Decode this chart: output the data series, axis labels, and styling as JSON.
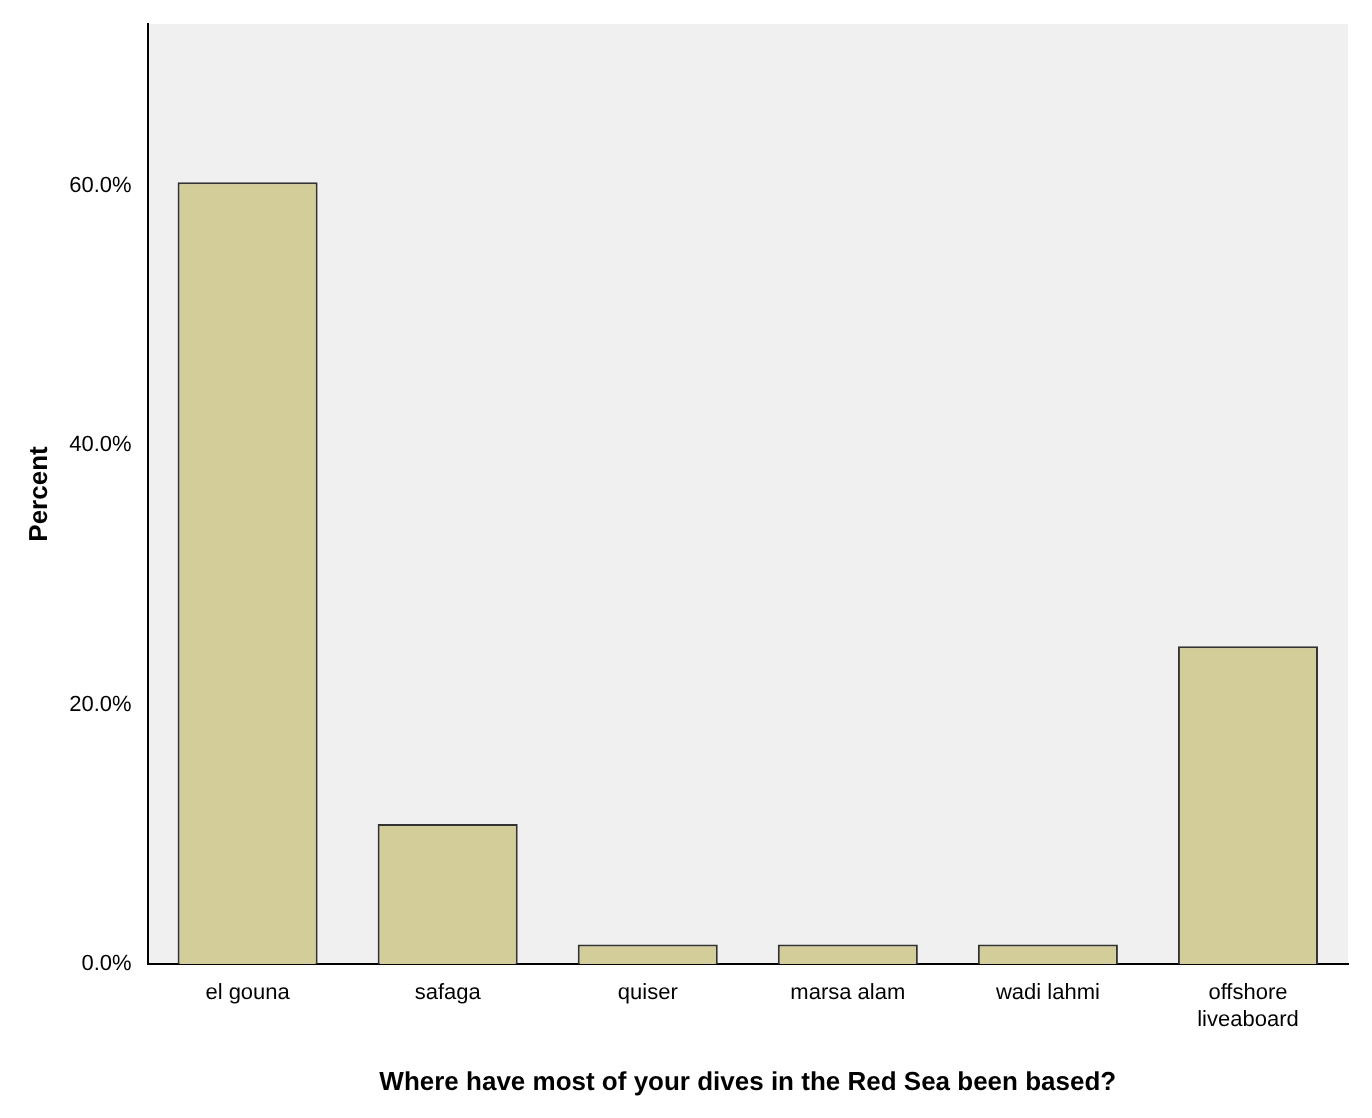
{
  "chart_data": {
    "type": "bar",
    "xlabel": "Where have most of your dives in the Red Sea been based?",
    "ylabel": "Percent",
    "categories": [
      "el gouna",
      "safaga",
      "quiser",
      "marsa alam",
      "wadi lahmi",
      "offshore liveaboard"
    ],
    "values": [
      60.3,
      10.8,
      1.5,
      1.5,
      1.5,
      24.5
    ],
    "color": "#d3ce99",
    "ylim": [
      0,
      72.5
    ],
    "yticks": [
      {
        "value": 0,
        "label": "0.0%"
      },
      {
        "value": 20,
        "label": "20.0%"
      },
      {
        "value": 40,
        "label": "40.0%"
      },
      {
        "value": 60,
        "label": "60.0%"
      }
    ],
    "grid": false,
    "legend": false
  }
}
